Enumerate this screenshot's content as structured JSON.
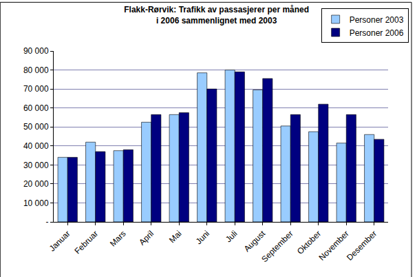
{
  "chart_data": {
    "type": "bar",
    "title": "Flakk-Rørvik: Trafikk av passasjerer per måned\ni 2006 sammenlignet med 2003",
    "categories": [
      "Januar",
      "Februar",
      "Mars",
      "April",
      "Mai",
      "Juni",
      "Juli",
      "August",
      "September",
      "Oktober",
      "November",
      "Desember"
    ],
    "series": [
      {
        "name": "Personer 2003",
        "color": "#99ccff",
        "values": [
          34000,
          42000,
          37500,
          52500,
          56500,
          78500,
          80000,
          69500,
          50500,
          47500,
          41500,
          46000
        ]
      },
      {
        "name": "Personer 2006",
        "color": "#000080",
        "values": [
          34000,
          37000,
          38000,
          56500,
          57500,
          70000,
          79000,
          75500,
          56500,
          62000,
          56500,
          43500
        ]
      }
    ],
    "ylim": [
      0,
      90000
    ],
    "yticks": [
      {
        "value": 0,
        "label": "-"
      },
      {
        "value": 10000,
        "label": "10 000"
      },
      {
        "value": 20000,
        "label": "20 000"
      },
      {
        "value": 30000,
        "label": "30 000"
      },
      {
        "value": 40000,
        "label": "40 000"
      },
      {
        "value": 50000,
        "label": "50 000"
      },
      {
        "value": 60000,
        "label": "60 000"
      },
      {
        "value": 70000,
        "label": "70 000"
      },
      {
        "value": 80000,
        "label": "80 000"
      },
      {
        "value": 90000,
        "label": "90 000"
      }
    ],
    "grid": true,
    "legend": "top right"
  }
}
